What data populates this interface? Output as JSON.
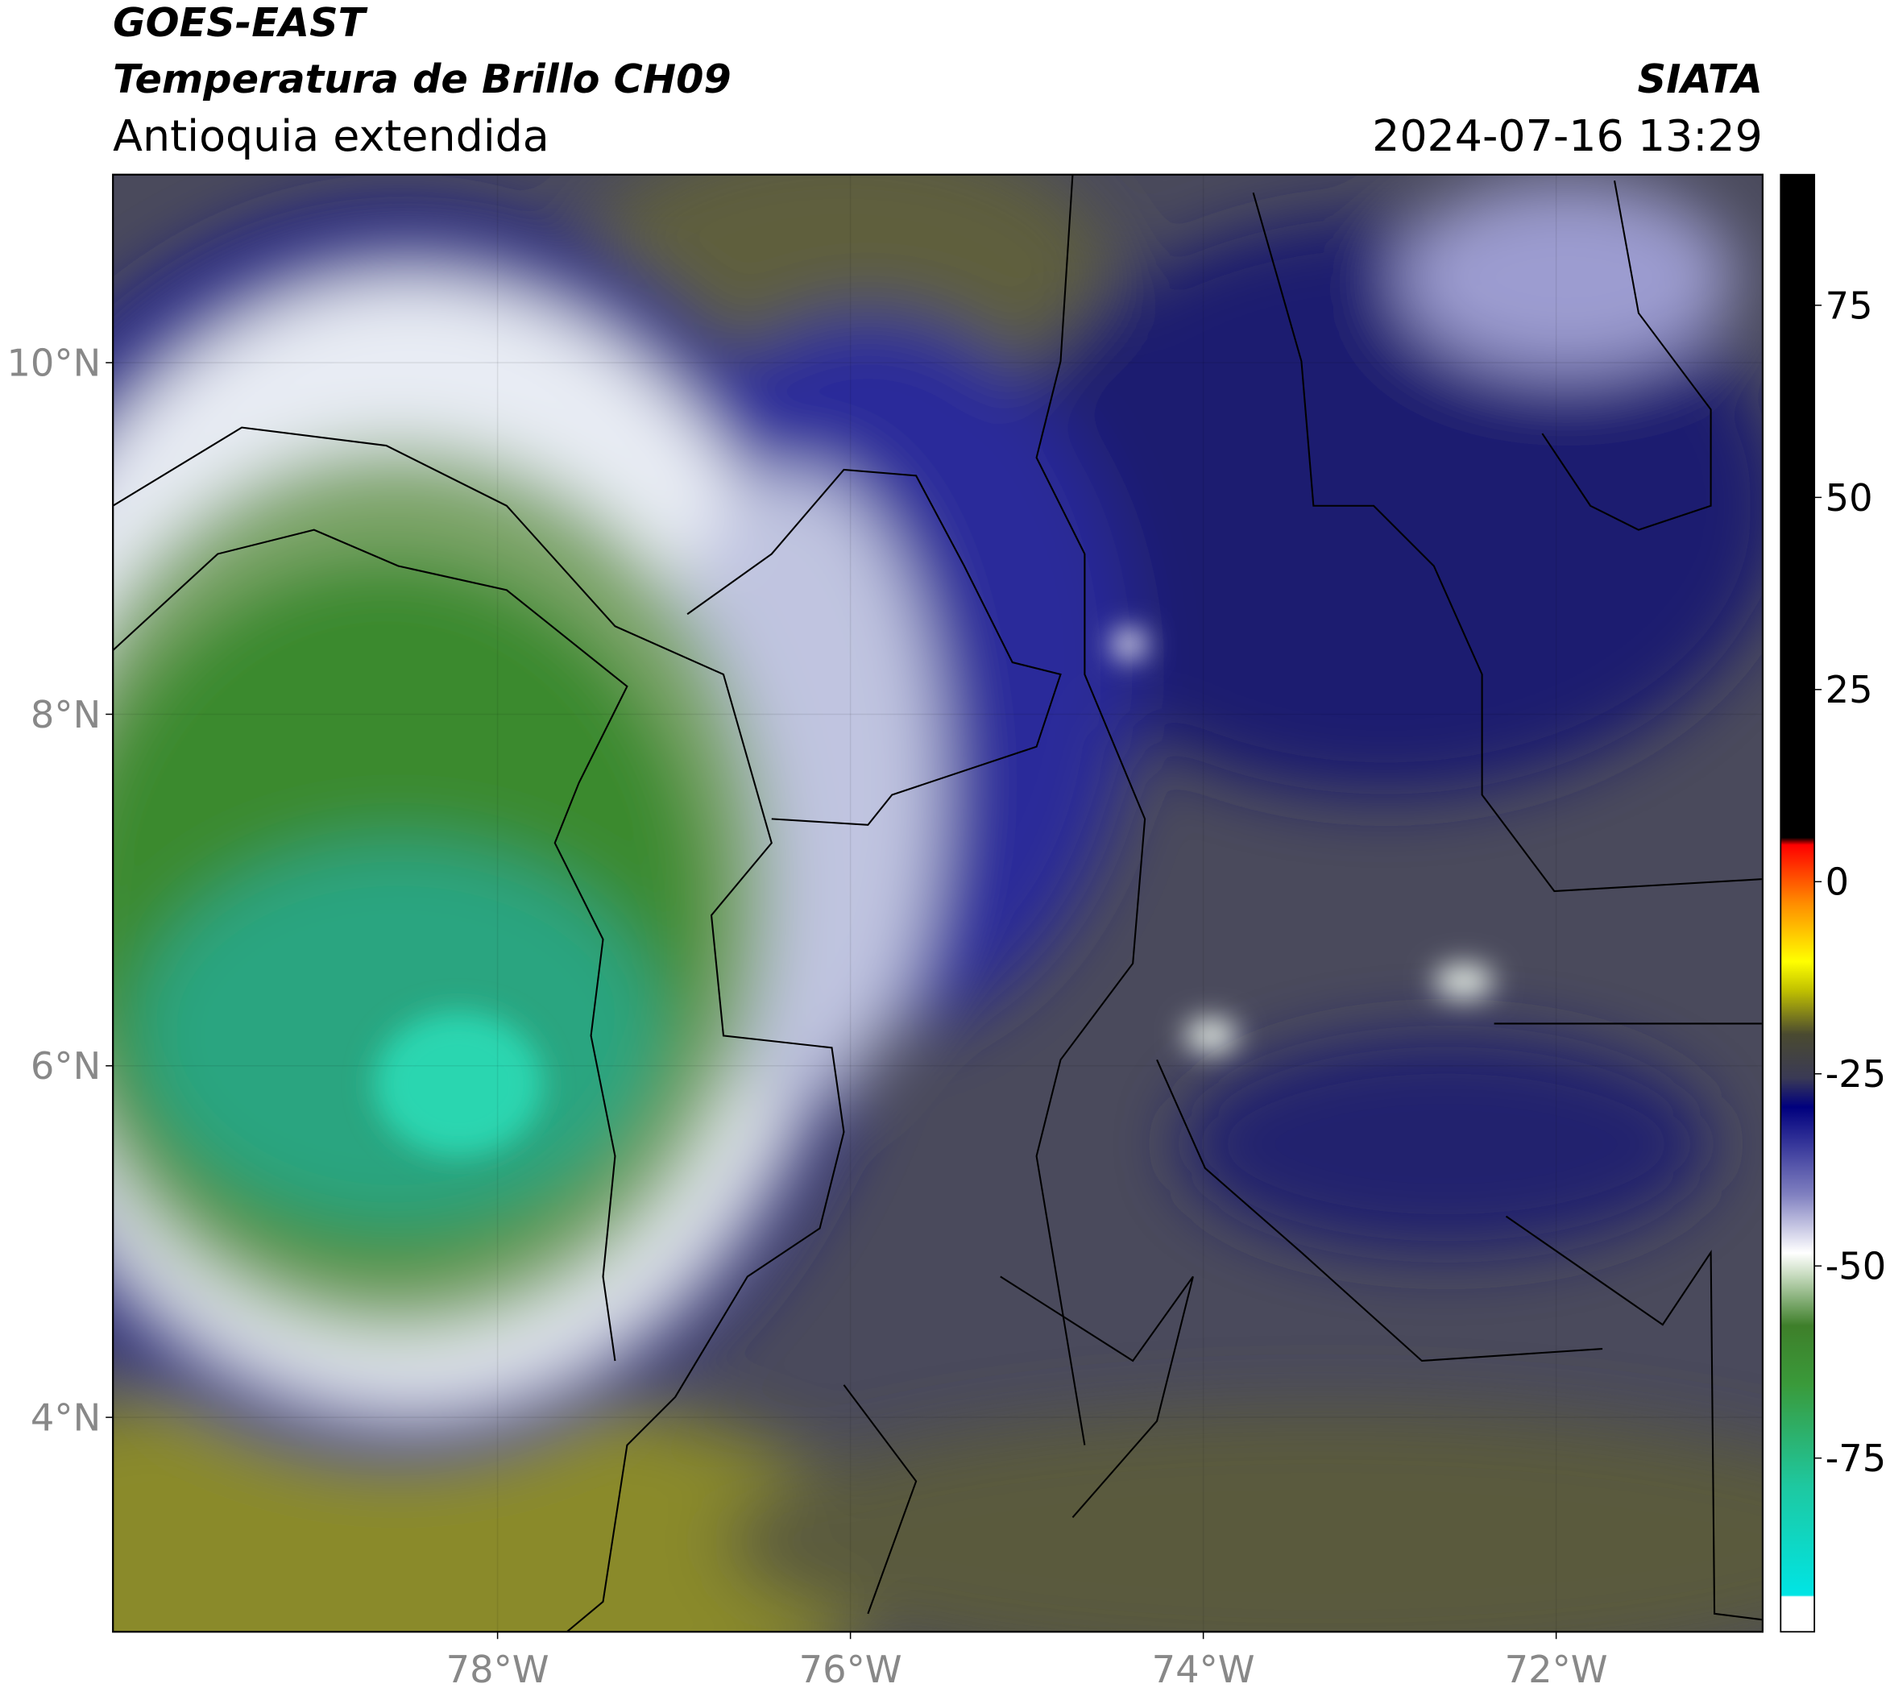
{
  "header": {
    "title": "GOES-EAST",
    "subtitle": "Temperatura de Brillo CH09",
    "region": "Antioquia extendida",
    "source": "SIATA",
    "datetime": "2024-07-16 13:29"
  },
  "map": {
    "xlim": [
      -80.18,
      -70.83
    ],
    "ylim": [
      2.78,
      11.07
    ],
    "xticks": [
      {
        "value": -78,
        "label": "78°W"
      },
      {
        "value": -76,
        "label": "76°W"
      },
      {
        "value": -74,
        "label": "74°W"
      },
      {
        "value": -72,
        "label": "72°W"
      }
    ],
    "yticks": [
      {
        "value": 4,
        "label": "4°N"
      },
      {
        "value": 6,
        "label": "6°N"
      },
      {
        "value": 8,
        "label": "8°N"
      },
      {
        "value": 10,
        "label": "10°N"
      }
    ]
  },
  "colorbar": {
    "lim": [
      -97.6,
      92
    ],
    "ticks": [
      -75,
      -50,
      -25,
      0,
      25,
      50,
      75
    ]
  }
}
